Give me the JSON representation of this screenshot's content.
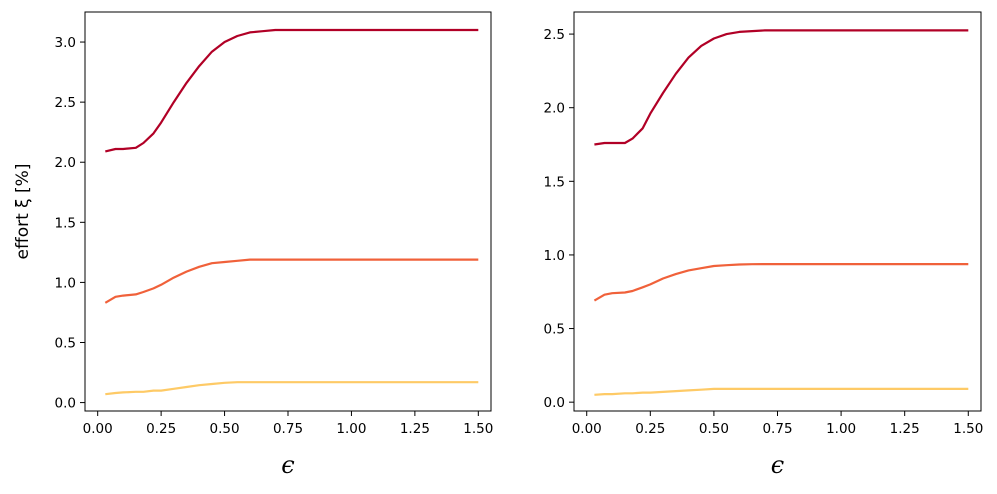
{
  "chart_data": [
    {
      "type": "line",
      "title": "",
      "xlabel": "ϵ",
      "ylabel": "effort ξ [%]",
      "xlim": [
        -0.05,
        1.55
      ],
      "ylim": [
        -0.07,
        3.25
      ],
      "xticks": [
        0.0,
        0.25,
        0.5,
        0.75,
        1.0,
        1.25,
        1.5
      ],
      "xtick_labels": [
        "0.00",
        "0.25",
        "0.50",
        "0.75",
        "1.00",
        "1.25",
        "1.50"
      ],
      "yticks": [
        0.0,
        0.5,
        1.0,
        1.5,
        2.0,
        2.5,
        3.0
      ],
      "ytick_labels": [
        "0.0",
        "0.5",
        "1.0",
        "1.5",
        "2.0",
        "2.5",
        "3.0"
      ],
      "grid": false,
      "x": [
        0.03,
        0.07,
        0.1,
        0.15,
        0.18,
        0.22,
        0.25,
        0.3,
        0.35,
        0.4,
        0.45,
        0.5,
        0.55,
        0.6,
        0.65,
        0.7,
        0.8,
        0.9,
        1.0,
        1.2,
        1.5
      ],
      "series": [
        {
          "color": "#b10026",
          "values": [
            2.09,
            2.11,
            2.11,
            2.12,
            2.16,
            2.24,
            2.33,
            2.5,
            2.66,
            2.8,
            2.92,
            3.0,
            3.05,
            3.08,
            3.09,
            3.1,
            3.1,
            3.1,
            3.1,
            3.1,
            3.1
          ]
        },
        {
          "color": "#f0613a",
          "values": [
            0.83,
            0.88,
            0.89,
            0.9,
            0.92,
            0.95,
            0.98,
            1.04,
            1.09,
            1.13,
            1.16,
            1.17,
            1.18,
            1.19,
            1.19,
            1.19,
            1.19,
            1.19,
            1.19,
            1.19,
            1.19
          ]
        },
        {
          "color": "#feca66",
          "values": [
            0.07,
            0.08,
            0.085,
            0.09,
            0.09,
            0.1,
            0.1,
            0.115,
            0.13,
            0.145,
            0.155,
            0.165,
            0.17,
            0.17,
            0.17,
            0.17,
            0.17,
            0.17,
            0.17,
            0.17,
            0.17
          ]
        }
      ]
    },
    {
      "type": "line",
      "title": "",
      "xlabel": "ϵ",
      "ylabel": "",
      "xlim": [
        -0.05,
        1.55
      ],
      "ylim": [
        -0.06,
        2.65
      ],
      "xticks": [
        0.0,
        0.25,
        0.5,
        0.75,
        1.0,
        1.25,
        1.5
      ],
      "xtick_labels": [
        "0.00",
        "0.25",
        "0.50",
        "0.75",
        "1.00",
        "1.25",
        "1.50"
      ],
      "yticks": [
        0.0,
        0.5,
        1.0,
        1.5,
        2.0,
        2.5
      ],
      "ytick_labels": [
        "0.0",
        "0.5",
        "1.0",
        "1.5",
        "2.0",
        "2.5"
      ],
      "grid": false,
      "x": [
        0.03,
        0.07,
        0.1,
        0.15,
        0.18,
        0.22,
        0.25,
        0.3,
        0.35,
        0.4,
        0.45,
        0.5,
        0.55,
        0.6,
        0.65,
        0.7,
        0.8,
        0.9,
        1.0,
        1.2,
        1.5
      ],
      "series": [
        {
          "color": "#b10026",
          "values": [
            1.75,
            1.76,
            1.76,
            1.76,
            1.79,
            1.86,
            1.96,
            2.1,
            2.23,
            2.34,
            2.42,
            2.47,
            2.5,
            2.515,
            2.52,
            2.525,
            2.525,
            2.525,
            2.525,
            2.525,
            2.525
          ]
        },
        {
          "color": "#f0613a",
          "values": [
            0.69,
            0.73,
            0.74,
            0.745,
            0.755,
            0.78,
            0.8,
            0.84,
            0.87,
            0.895,
            0.91,
            0.925,
            0.93,
            0.935,
            0.937,
            0.938,
            0.938,
            0.938,
            0.938,
            0.938,
            0.938
          ]
        },
        {
          "color": "#feca66",
          "values": [
            0.05,
            0.055,
            0.055,
            0.06,
            0.06,
            0.065,
            0.065,
            0.07,
            0.075,
            0.08,
            0.085,
            0.09,
            0.09,
            0.09,
            0.09,
            0.09,
            0.09,
            0.09,
            0.09,
            0.09,
            0.09
          ]
        }
      ]
    }
  ]
}
